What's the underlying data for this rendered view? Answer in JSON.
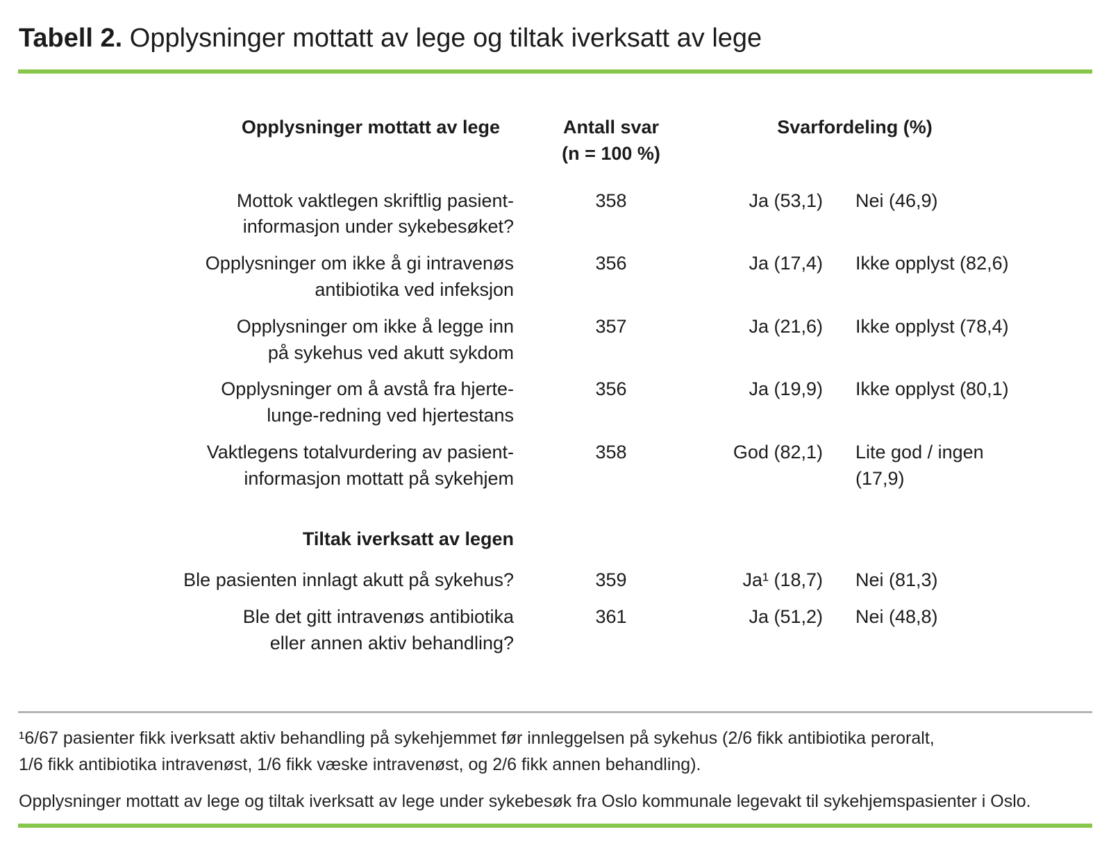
{
  "title": {
    "prefix": "Tabell 2.",
    "text": " Opplysninger mottatt av lege og tiltak iverksatt av lege"
  },
  "colors": {
    "accent_green": "#86c64b",
    "divider_gray": "#b5b5b5",
    "text": "#1b1b1b"
  },
  "table": {
    "headers": {
      "col1": "Opplysninger mottatt av lege",
      "col2_lines": [
        "Antall svar",
        "(n = 100 %)"
      ],
      "col34": "Svarfordeling (%)"
    },
    "rows": [
      {
        "label_lines": [
          "Mottok vaktlegen skriftlig pasient-",
          "informasjon under sykebesøket?"
        ],
        "n": "358",
        "answer1": "Ja (53,1)",
        "answer2_lines": [
          "Nei (46,9)"
        ]
      },
      {
        "label_lines": [
          "Opplysninger om ikke å gi intravenøs",
          "antibiotika ved infeksjon"
        ],
        "n": "356",
        "answer1": "Ja (17,4)",
        "answer2_lines": [
          "Ikke opplyst (82,6)"
        ]
      },
      {
        "label_lines": [
          "Opplysninger om ikke å legge inn",
          "på sykehus ved akutt sykdom"
        ],
        "n": "357",
        "answer1": "Ja (21,6)",
        "answer2_lines": [
          "Ikke opplyst (78,4)"
        ]
      },
      {
        "label_lines": [
          "Opplysninger om å avstå fra hjerte-",
          "lunge-redning ved hjertestans"
        ],
        "n": "356",
        "answer1": "Ja (19,9)",
        "answer2_lines": [
          "Ikke opplyst (80,1)"
        ]
      },
      {
        "label_lines": [
          "Vaktlegens totalvurdering av pasient-",
          "informasjon mottatt på sykehjem"
        ],
        "n": "358",
        "answer1": "God (82,1)",
        "answer2_lines": [
          "Lite god / ingen",
          "(17,9)"
        ]
      }
    ],
    "section_header": "Tiltak iverksatt av legen",
    "section_rows": [
      {
        "label_lines": [
          "Ble pasienten innlagt akutt på sykehus?"
        ],
        "n": "359",
        "answer1": "Ja¹ (18,7)",
        "answer2_lines": [
          "Nei (81,3)"
        ]
      },
      {
        "label_lines": [
          "Ble det gitt intravenøs antibiotika",
          "eller annen aktiv behandling?"
        ],
        "n": "361",
        "answer1": "Ja (51,2)",
        "answer2_lines": [
          "Nei (48,8)"
        ]
      }
    ]
  },
  "footnote_lines": [
    "¹6/67 pasienter fikk iverksatt aktiv behandling på sykehjemmet før innleggelsen på sykehus (2/6 fikk antibiotika peroralt,",
    "1/6 fikk antibiotika intravenøst, 1/6 fikk væske intravenøst, og 2/6 fikk annen behandling)."
  ],
  "caption": "Opplysninger mottatt av lege og tiltak iverksatt av lege under sykebesøk fra Oslo kommunale legevakt til sykehjemspasienter i Oslo."
}
